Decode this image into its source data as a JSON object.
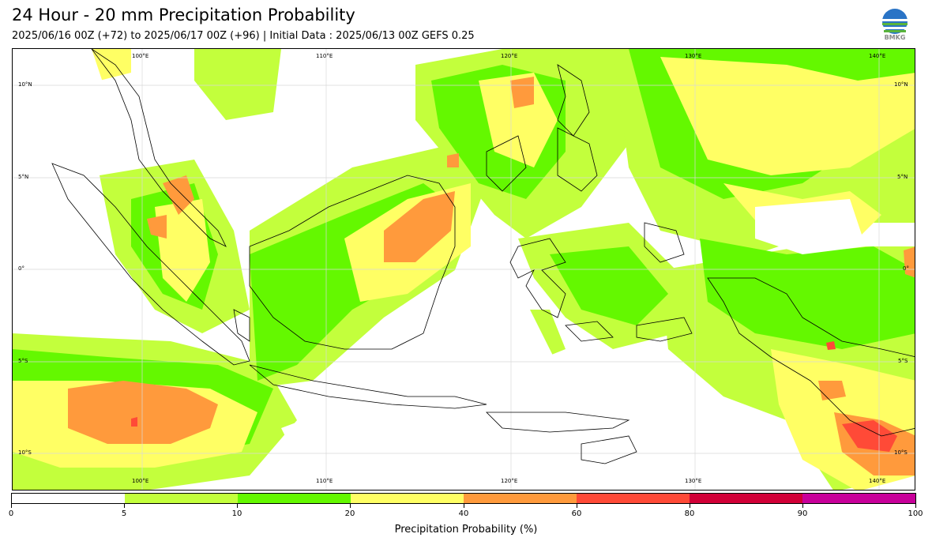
{
  "header": {
    "title": "24 Hour - 20 mm Precipitation Probability",
    "subtitle": "2025/06/16 00Z (+72) to 2025/06/17 00Z (+96) | Initial Data : 2025/06/13 00Z GEFS 0.25",
    "logo_text": "BMKG"
  },
  "map": {
    "lon_top_labels": [
      "100°E",
      "110°E",
      "120°E",
      "130°E",
      "140°E"
    ],
    "lon_bottom_labels": [
      "100°E",
      "110°E",
      "120°E",
      "130°E",
      "140°E"
    ],
    "lat_left_labels": [
      "10°N",
      "5°N",
      "0°",
      "5°S",
      "10°S"
    ],
    "lat_right_labels": [
      "10°N",
      "5°N",
      "0°",
      "5°S",
      "10°S"
    ],
    "grid_color": "#d9d9d9",
    "coastline_color": "#000000"
  },
  "colorbar": {
    "title": "Precipitation Probability (%)",
    "tick_labels": [
      "0",
      "5",
      "10",
      "20",
      "40",
      "60",
      "80",
      "90",
      "100"
    ],
    "colors": [
      "#ffffff",
      "#c3ff3c",
      "#64f800",
      "#ffff64",
      "#ff9a3c",
      "#ff4a37",
      "#d10037",
      "#c8009a"
    ]
  }
}
